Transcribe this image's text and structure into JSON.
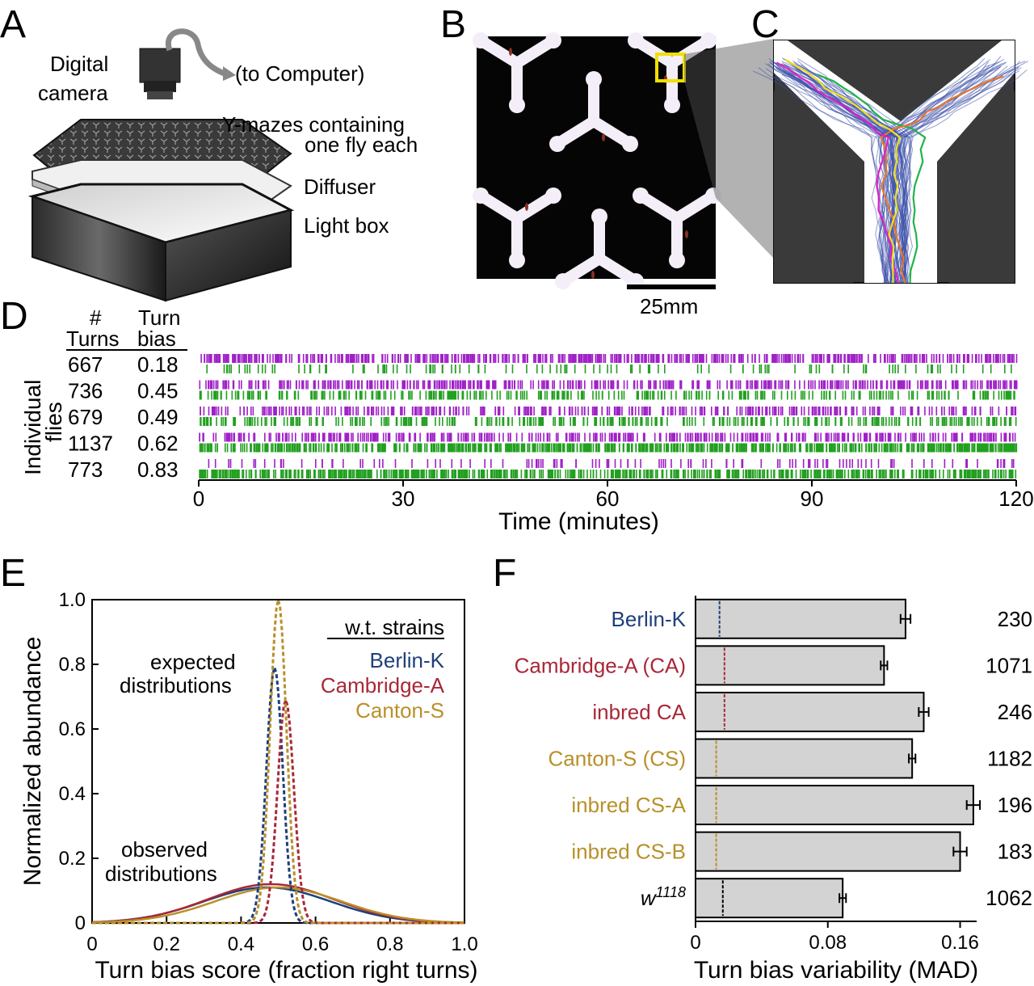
{
  "panels": {
    "A": "A",
    "B": "B",
    "C": "C",
    "D": "D",
    "E": "E",
    "F": "F"
  },
  "panel_a": {
    "camera_label": [
      "Digital",
      "camera"
    ],
    "computer_label": "(to Computer)",
    "maze_label": [
      "Y-mazes containing",
      "one fly each"
    ],
    "diffuser_label": "Diffuser",
    "lightbox_label": "Light box"
  },
  "panel_b": {
    "scale_label": "25mm"
  },
  "panel_c": {
    "trace_colors": {
      "individual": "#3b4fa8",
      "green": "#22b24c",
      "orange": "#e8742a",
      "magenta": "#e020c8",
      "yellow": "#f0e020"
    }
  },
  "panel_d": {
    "col_turns": [
      "#",
      "Turns"
    ],
    "col_bias": [
      "Turn",
      "bias"
    ],
    "ylabel": [
      "Individual",
      "flies"
    ],
    "flies": [
      {
        "turns": "667",
        "bias": "0.18"
      },
      {
        "turns": "736",
        "bias": "0.45"
      },
      {
        "turns": "679",
        "bias": "0.49"
      },
      {
        "turns": "1137",
        "bias": "0.62"
      },
      {
        "turns": "773",
        "bias": "0.83"
      }
    ],
    "xticks": [
      "0",
      "30",
      "60",
      "90",
      "120"
    ],
    "xlabel": "Time (minutes)",
    "colors": {
      "left": "#a020c8",
      "right": "#22a020"
    }
  },
  "chart_data": [
    {
      "type": "line",
      "panel": "E",
      "xlabel": "Turn bias score (fraction right turns)",
      "ylabel": "Normalized abundance",
      "xlim": [
        0,
        1.0
      ],
      "ylim": [
        0,
        1.0
      ],
      "xticks": [
        "0",
        "0.2",
        "0.4",
        "0.6",
        "0.8",
        "1.0"
      ],
      "yticks": [
        "0",
        "0.2",
        "0.4",
        "0.6",
        "0.8",
        "1.0"
      ],
      "legend_title": "w.t. strains",
      "legend": [
        "Berlin-K",
        "Cambridge-A",
        "Canton-S"
      ],
      "annotations": [
        "expected",
        "distributions",
        "observed",
        "distributions"
      ],
      "series": [
        {
          "name": "Berlin-K",
          "color": "#1f3f7a",
          "expected_peak_x": 0.49,
          "expected_peak_y": 0.79,
          "observed_peak_x": 0.47,
          "observed_peak_y": 0.11
        },
        {
          "name": "Cambridge-A",
          "color": "#a82838",
          "expected_peak_x": 0.52,
          "expected_peak_y": 0.69,
          "observed_peak_x": 0.48,
          "observed_peak_y": 0.12
        },
        {
          "name": "Canton-S",
          "color": "#b8902a",
          "expected_peak_x": 0.5,
          "expected_peak_y": 1.0,
          "observed_peak_x": 0.5,
          "observed_peak_y": 0.11
        }
      ]
    },
    {
      "type": "bar",
      "panel": "F",
      "xlabel": "Turn bias variability (MAD)",
      "xlim": [
        0,
        0.17
      ],
      "xticks": [
        "0",
        "0.08",
        "0.16"
      ],
      "categories": [
        "Berlin-K",
        "Cambridge-A (CA)",
        "inbred CA",
        "Canton-S (CS)",
        "inbred CS-A",
        "inbred CS-B",
        "w"
      ],
      "category_sup": [
        "",
        "",
        "",
        "",
        "",
        "",
        "1118"
      ],
      "category_colors": [
        "#1f3f7a",
        "#a82838",
        "#a82838",
        "#b8902a",
        "#b8902a",
        "#b8902a",
        "#000000"
      ],
      "values": [
        0.127,
        0.114,
        0.138,
        0.131,
        0.168,
        0.16,
        0.089
      ],
      "errors": [
        0.003,
        0.002,
        0.003,
        0.002,
        0.004,
        0.004,
        0.002
      ],
      "expected": [
        0.0145,
        0.0175,
        0.0175,
        0.0125,
        0.0125,
        0.0125,
        0.0165
      ],
      "n": [
        "230",
        "1071",
        "246",
        "1182",
        "196",
        "183",
        "1062"
      ]
    }
  ]
}
